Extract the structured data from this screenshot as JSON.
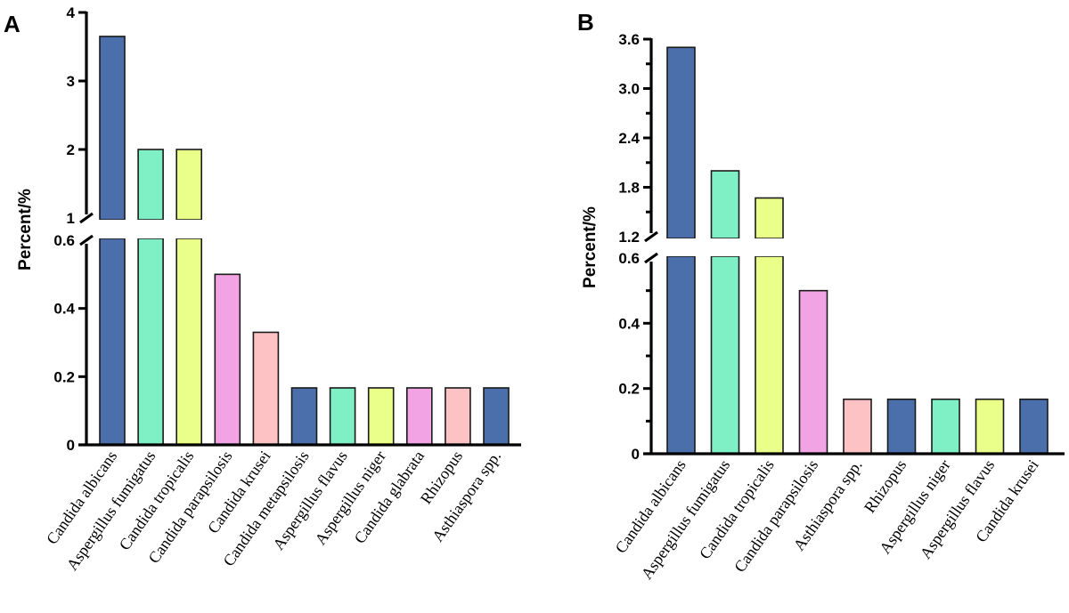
{
  "chart_data": [
    {
      "panel": "A",
      "type": "bar",
      "title": "",
      "xlabel": "",
      "ylabel": "Percent/%",
      "axis_break": {
        "lower_max": 0.6,
        "upper_min": 1
      },
      "ylim": [
        0,
        4
      ],
      "lower_ticks": [
        "0",
        "0.2",
        "0.4",
        "0.6"
      ],
      "lower_tick_values": [
        0,
        0.2,
        0.4,
        0.6
      ],
      "upper_ticks": [
        "1",
        "2",
        "3",
        "4"
      ],
      "upper_tick_values": [
        1,
        2,
        3,
        4
      ],
      "upper_minor_ticks": [],
      "lower_minor_ticks": [],
      "categories": [
        "Candida albicans",
        "Aspergillus fumigatus",
        "Candida tropicalis",
        "Candida parapsilosis",
        "Candida krusei",
        "Candida metapsilosis",
        "Aspergillus flavus",
        "Aspergillus niger",
        "Candida glabrata",
        "Rhizopus",
        "Asthiaspora spp."
      ],
      "values": [
        3.65,
        2.0,
        2.0,
        0.5,
        0.33,
        0.167,
        0.167,
        0.167,
        0.167,
        0.167,
        0.167
      ],
      "colors": [
        "#4a6fab",
        "#7ff0c6",
        "#eaff8a",
        "#f2a3e4",
        "#fcc2c4",
        "#4a6fab",
        "#7ff0c6",
        "#eaff8a",
        "#f2a3e4",
        "#fcc2c4",
        "#4a6fab"
      ],
      "grid": false,
      "legend": "none"
    },
    {
      "panel": "B",
      "type": "bar",
      "title": "",
      "xlabel": "",
      "ylabel": "Percent/%",
      "axis_break": {
        "lower_max": 0.6,
        "upper_min": 1.2
      },
      "ylim": [
        0,
        3.6
      ],
      "lower_ticks": [
        "0",
        "0.2",
        "0.4",
        "0.6"
      ],
      "lower_tick_values": [
        0,
        0.2,
        0.4,
        0.6
      ],
      "upper_ticks": [
        "1.2",
        "1.8",
        "2.4",
        "3.0",
        "3.6"
      ],
      "upper_tick_values": [
        1.2,
        1.8,
        2.4,
        3.0,
        3.6
      ],
      "upper_minor_ticks": [
        1.5,
        2.1,
        2.7,
        3.3
      ],
      "lower_minor_ticks": [
        0.1,
        0.3,
        0.5
      ],
      "categories": [
        "Candida albicans",
        "Aspergillus fumigatus",
        "Candida tropicalis",
        "Candida parapsilosis",
        "Asthiaspora spp.",
        "Rhizopus",
        "Aspergillus niger",
        "Aspergillus flavus",
        "Candida krusei"
      ],
      "values": [
        3.5,
        2.0,
        1.67,
        0.5,
        0.167,
        0.167,
        0.167,
        0.167,
        0.167
      ],
      "colors": [
        "#4a6fab",
        "#7ff0c6",
        "#eaff8a",
        "#f2a3e4",
        "#fcc2c4",
        "#4a6fab",
        "#7ff0c6",
        "#eaff8a",
        "#4a6fab"
      ],
      "grid": false,
      "legend": "none"
    }
  ]
}
